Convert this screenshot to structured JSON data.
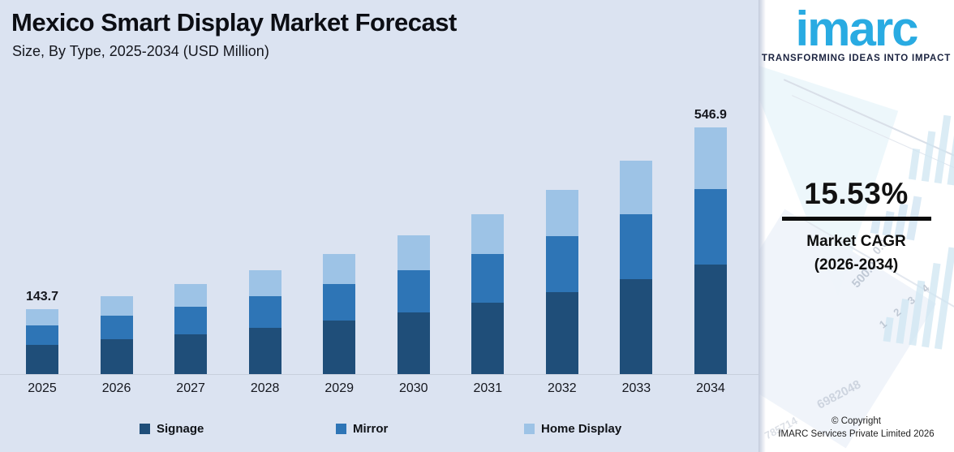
{
  "header": {
    "title": "Mexico Smart Display Market Forecast",
    "subtitle": "Size, By Type, 2025-2034 (USD Million)"
  },
  "chart_data": {
    "type": "bar",
    "stacked": true,
    "title": "Mexico Smart Display Market Forecast",
    "subtitle": "Size, By Type, 2025-2034 (USD Million)",
    "unit": "USD Million",
    "xlabel": "",
    "ylabel": "",
    "ylim": [
      0,
      600
    ],
    "grid": false,
    "legend_position": "bottom",
    "categories": [
      "2025",
      "2026",
      "2027",
      "2028",
      "2029",
      "2030",
      "2031",
      "2032",
      "2033",
      "2034"
    ],
    "series": [
      {
        "name": "Signage",
        "color": "#1F4E79",
        "values": [
          63.9,
          76.7,
          88.6,
          102.4,
          118.2,
          136.6,
          157.8,
          182.3,
          210.6,
          243.4
        ]
      },
      {
        "name": "Mirror",
        "color": "#2E75B6",
        "values": [
          43.8,
          52.5,
          60.7,
          70.2,
          81.0,
          93.6,
          108.2,
          125.0,
          144.4,
          166.8
        ]
      },
      {
        "name": "Home Display",
        "color": "#9DC3E6",
        "values": [
          36.0,
          43.1,
          49.8,
          57.4,
          66.5,
          76.8,
          88.6,
          102.4,
          118.3,
          136.7
        ]
      }
    ],
    "totals": [
      143.7,
      172.3,
      199.1,
      230.0,
      265.7,
      307.0,
      354.6,
      409.7,
      473.3,
      546.9
    ],
    "annotations": [
      {
        "index": 0,
        "text": "143.7"
      },
      {
        "index": 9,
        "text": "546.9"
      }
    ]
  },
  "side_panel": {
    "logo_text": "imarc",
    "logo_tagline": "TRANSFORMING IDEAS INTO IMPACT",
    "brand_blue": "#29ABE2",
    "cagr_value": "15.53%",
    "cagr_label_line1": "Market CAGR",
    "cagr_label_line2": "(2026-2034)",
    "copyright_line1": "© Copyright",
    "copyright_line2": "IMARC Services Private Limited 2026",
    "watermarks": [
      "500.0",
      "0.0",
      "1 2 3 4",
      "6982048",
      "785714"
    ]
  },
  "colors": {
    "chart_background": "#dbe3f1",
    "panel_background": "#ffffff",
    "axis_line": "#c8cfdc",
    "text": "#15171e"
  }
}
